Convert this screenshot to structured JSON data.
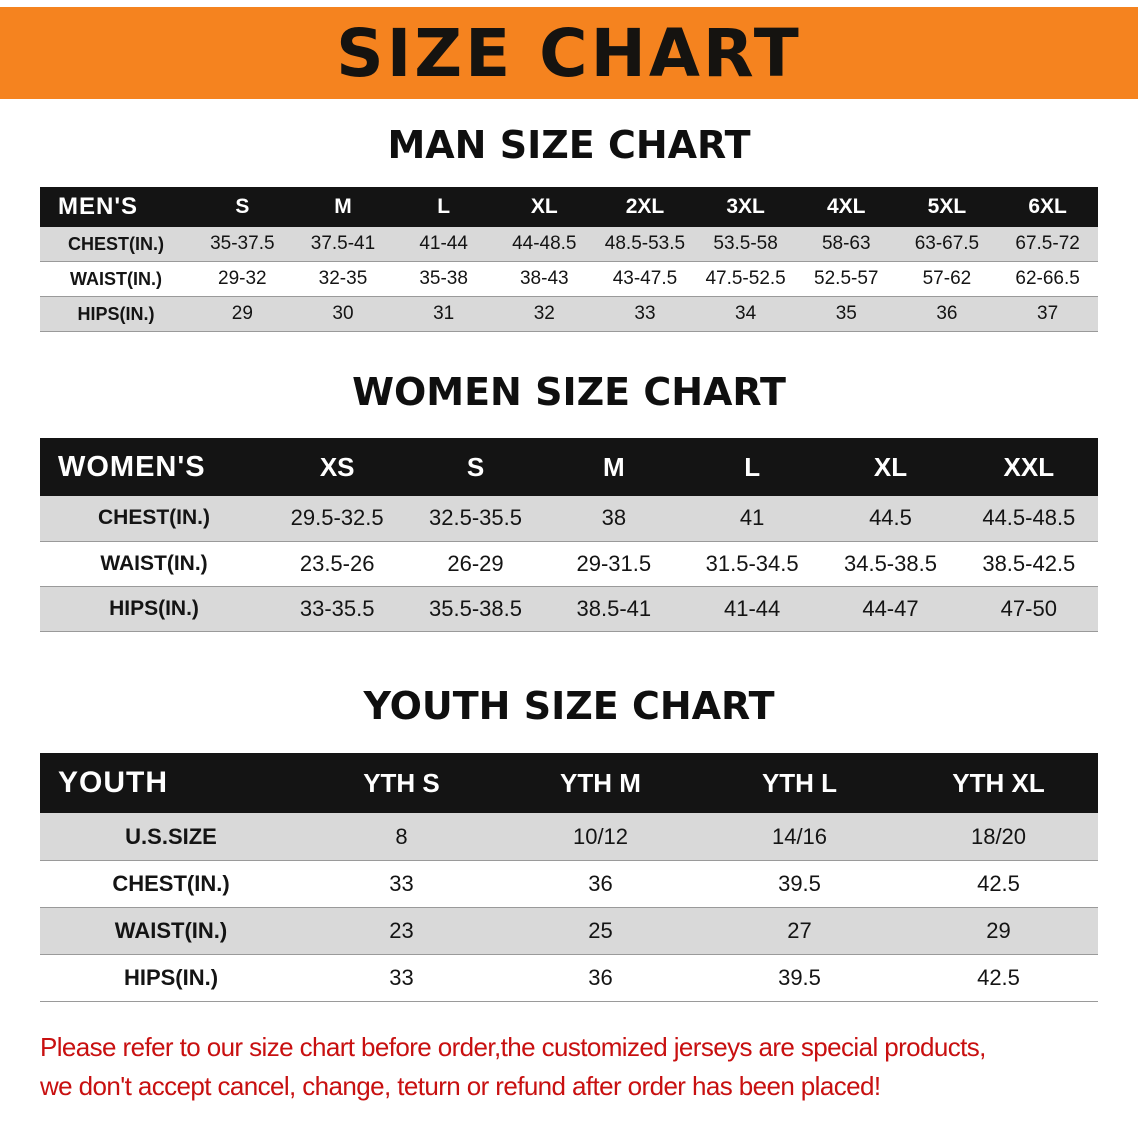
{
  "banner": {
    "title": "SIZE CHART",
    "bg_color": "#F5831F",
    "text_color": "#151310"
  },
  "chart_data": [
    {
      "type": "table",
      "title": "MAN SIZE CHART",
      "header": [
        "MEN'S",
        "S",
        "M",
        "L",
        "XL",
        "2XL",
        "3XL",
        "4XL",
        "5XL",
        "6XL"
      ],
      "rows": [
        [
          "CHEST(IN.)",
          "35-37.5",
          "37.5-41",
          "41-44",
          "44-48.5",
          "48.5-53.5",
          "53.5-58",
          "58-63",
          "63-67.5",
          "67.5-72"
        ],
        [
          "WAIST(IN.)",
          "29-32",
          "32-35",
          "35-38",
          "38-43",
          "43-47.5",
          "47.5-52.5",
          "52.5-57",
          "57-62",
          "62-66.5"
        ],
        [
          "HIPS(IN.)",
          "29",
          "30",
          "31",
          "32",
          "33",
          "34",
          "35",
          "36",
          "37"
        ]
      ]
    },
    {
      "type": "table",
      "title": "WOMEN SIZE CHART",
      "header": [
        "WOMEN'S",
        "XS",
        "S",
        "M",
        "L",
        "XL",
        "XXL"
      ],
      "rows": [
        [
          "CHEST(IN.)",
          "29.5-32.5",
          "32.5-35.5",
          "38",
          "41",
          "44.5",
          "44.5-48.5"
        ],
        [
          "WAIST(IN.)",
          "23.5-26",
          "26-29",
          "29-31.5",
          "31.5-34.5",
          "34.5-38.5",
          "38.5-42.5"
        ],
        [
          "HIPS(IN.)",
          "33-35.5",
          "35.5-38.5",
          "38.5-41",
          "41-44",
          "44-47",
          "47-50"
        ]
      ]
    },
    {
      "type": "table",
      "title": "YOUTH SIZE CHART",
      "header": [
        "YOUTH",
        "YTH S",
        "YTH M",
        "YTH L",
        "YTH XL"
      ],
      "rows": [
        [
          "U.S.SIZE",
          "8",
          "10/12",
          "14/16",
          "18/20"
        ],
        [
          "CHEST(IN.)",
          "33",
          "36",
          "39.5",
          "42.5"
        ],
        [
          "WAIST(IN.)",
          "23",
          "25",
          "27",
          "29"
        ],
        [
          "HIPS(IN.)",
          "33",
          "36",
          "39.5",
          "42.5"
        ]
      ]
    }
  ],
  "footnote": {
    "line1": "Please refer to our size chart before order,the customized jerseys are special products,",
    "line2": "we don't accept cancel, change, teturn or refund after order has been placed!",
    "color": "#C81010"
  }
}
